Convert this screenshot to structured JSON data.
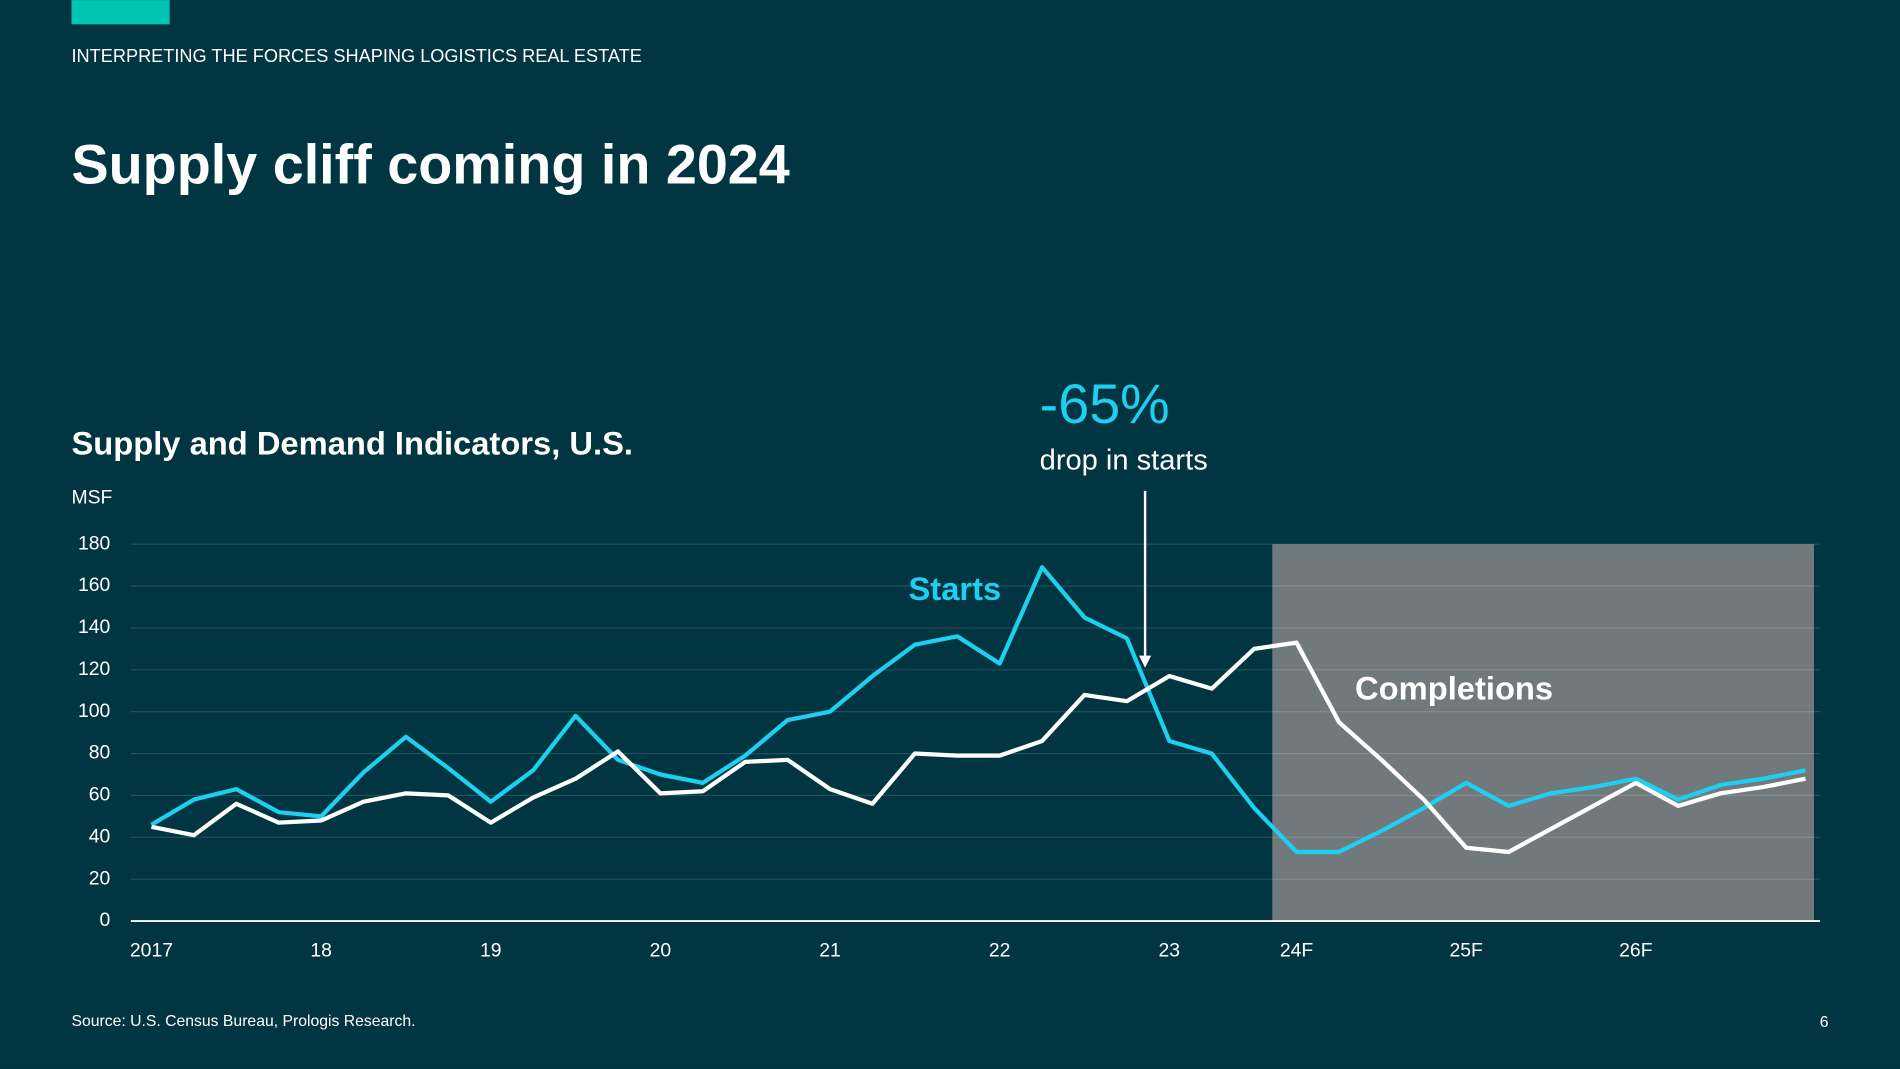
{
  "header": {
    "kicker": "INTERPRETING THE FORCES SHAPING LOGISTICS REAL ESTATE",
    "title": "Supply cliff coming in 2024"
  },
  "chart_data": {
    "type": "line",
    "title": "Supply and Demand Indicators, U.S.",
    "y_label": "MSF",
    "categories": [
      "2017",
      null,
      null,
      null,
      "18",
      null,
      null,
      null,
      "19",
      null,
      null,
      null,
      "20",
      null,
      null,
      null,
      "21",
      null,
      null,
      null,
      "22",
      null,
      null,
      null,
      "23",
      null,
      null,
      "24F",
      null,
      null,
      null,
      "25F",
      null,
      null,
      null,
      "26F",
      null,
      null,
      null,
      null
    ],
    "series": [
      {
        "name": "Starts",
        "color": "#1ecfef",
        "values": [
          46,
          58,
          63,
          52,
          50,
          71,
          88,
          73,
          57,
          72,
          98,
          77,
          70,
          66,
          79,
          96,
          100,
          117,
          132,
          136,
          123,
          169,
          145,
          135,
          86,
          80,
          54,
          33,
          33,
          43,
          54,
          66,
          55,
          61,
          64,
          68,
          58,
          65,
          68,
          72
        ]
      },
      {
        "name": "Completions",
        "color": "#ffffff",
        "values": [
          45,
          41,
          56,
          47,
          48,
          57,
          61,
          60,
          47,
          59,
          68,
          81,
          61,
          62,
          76,
          77,
          63,
          56,
          80,
          79,
          79,
          86,
          108,
          105,
          117,
          111,
          130,
          133,
          95,
          77,
          58,
          35,
          33,
          44,
          55,
          66,
          55,
          61,
          64,
          68
        ]
      }
    ],
    "ylim": [
      0,
      180
    ],
    "yticks": [
      0,
      20,
      40,
      60,
      80,
      100,
      120,
      140,
      160,
      180
    ],
    "grid": true,
    "annotation": {
      "value": "-65%",
      "text": "drop in starts"
    }
  },
  "footer": {
    "source": "Source: U.S. Census Bureau, Prologis Research.",
    "page": "6"
  }
}
